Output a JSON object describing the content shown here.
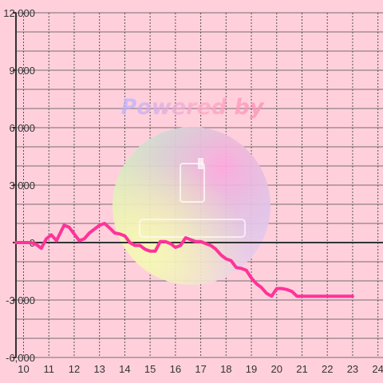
{
  "watermark": {
    "text": "Powered by",
    "colors": [
      "#b9b4ff",
      "#ffa9c7",
      "#ff8fb3"
    ]
  },
  "chart_data": {
    "type": "line",
    "title": "",
    "xlabel": "",
    "ylabel": "",
    "xlim": [
      9.7,
      24.2
    ],
    "ylim": [
      -6000,
      12000
    ],
    "x_ticks": [
      10,
      11,
      12,
      13,
      14,
      15,
      16,
      17,
      18,
      19,
      20,
      21,
      22,
      23,
      24
    ],
    "y_ticks": [
      -6000,
      -3000,
      0,
      3000,
      6000,
      9000,
      12000
    ],
    "x_tick_labels": [
      "10",
      "11",
      "12",
      "13",
      "14",
      "15",
      "16",
      "17",
      "18",
      "19",
      "20",
      "21",
      "22",
      "23",
      "24"
    ],
    "y_tick_labels": [
      "-6,000",
      "-3,000",
      "0",
      "3,000",
      "6,000",
      "9,000",
      "12,000"
    ],
    "grid": true,
    "line_color": "#ff3399",
    "background_color": "#ffd0dc",
    "series": [
      {
        "x": [
          9.7,
          10.3,
          10.5,
          10.7,
          10.9,
          11.1,
          11.3,
          11.6,
          11.8,
          12.0,
          12.2,
          12.4,
          12.6,
          12.8,
          13.0,
          13.2,
          13.45,
          13.6,
          13.8,
          14.0,
          14.2,
          14.4,
          14.6,
          14.8,
          15.0,
          15.2,
          15.4,
          15.6,
          15.8,
          16.0,
          16.2,
          16.4,
          16.6,
          16.8,
          17.0,
          17.2,
          17.4,
          17.6,
          17.8,
          18.0,
          18.2,
          18.4,
          18.6,
          18.8,
          19.0,
          19.2,
          19.4,
          19.6,
          19.8,
          20.0,
          20.2,
          20.4,
          20.6,
          20.8,
          21.0,
          21.5,
          22.0,
          22.5,
          23.0
        ],
        "y": [
          0,
          0,
          -100,
          -300,
          200,
          400,
          100,
          900,
          800,
          450,
          100,
          200,
          500,
          700,
          900,
          1000,
          700,
          500,
          450,
          350,
          0,
          -150,
          -150,
          -350,
          -450,
          -450,
          50,
          50,
          -50,
          -250,
          -150,
          250,
          150,
          50,
          50,
          -50,
          -150,
          -350,
          -650,
          -850,
          -950,
          -1300,
          -1350,
          -1450,
          -1850,
          -2150,
          -2350,
          -2650,
          -2800,
          -2400,
          -2400,
          -2450,
          -2550,
          -2800,
          -2800,
          -2800,
          -2800,
          -2800,
          -2800
        ]
      }
    ]
  }
}
